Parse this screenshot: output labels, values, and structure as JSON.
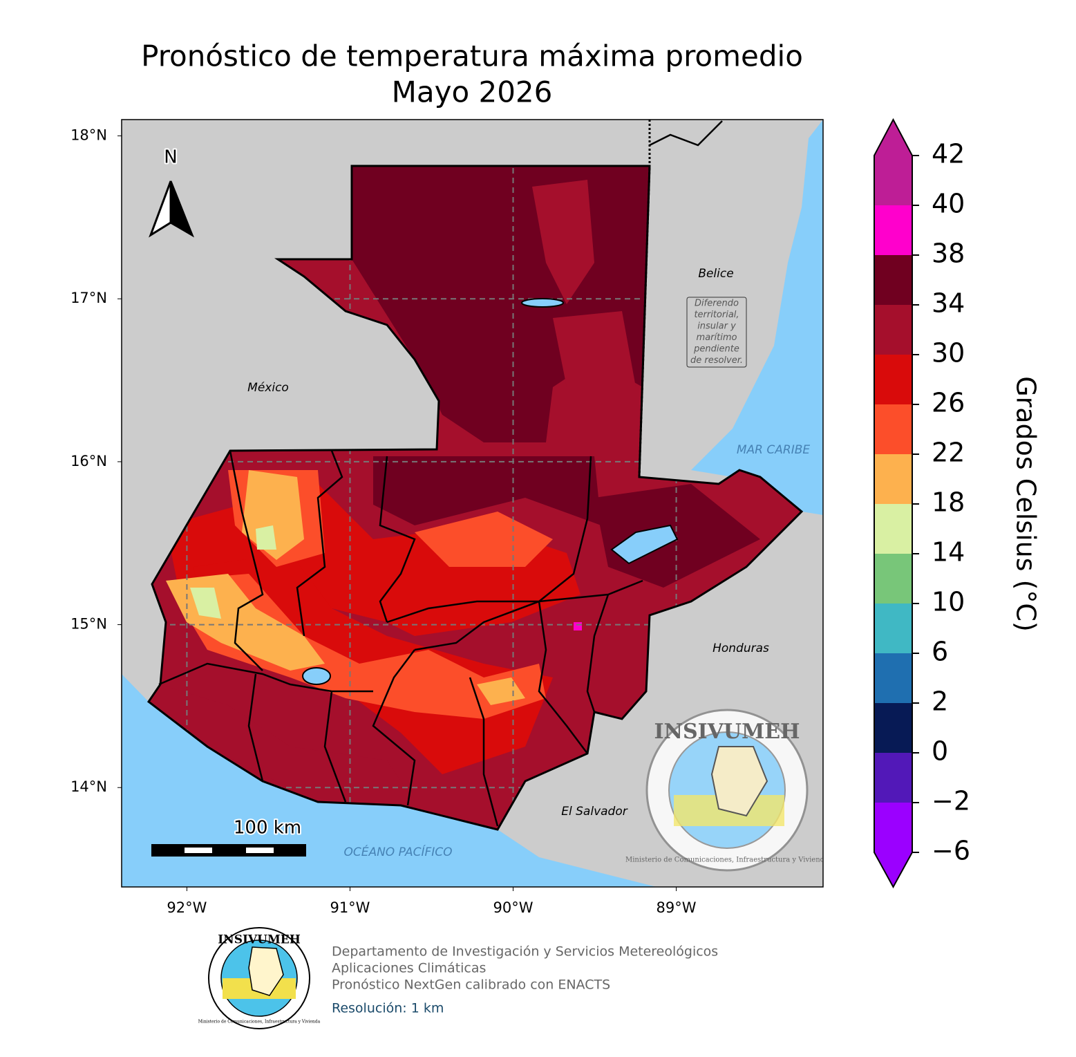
{
  "title": [
    "Pronóstico de temperatura máxima promedio",
    "Mayo 2026"
  ],
  "map": {
    "lonlim": [
      -92.4,
      -88.1
    ],
    "latlim": [
      13.39,
      18.1
    ],
    "lonticks": [
      {
        "value": -92,
        "label": "92°W"
      },
      {
        "value": -91,
        "label": "91°W"
      },
      {
        "value": -90,
        "label": "90°W"
      },
      {
        "value": -89,
        "label": "89°W"
      }
    ],
    "latticks": [
      {
        "value": 14,
        "label": "14°N"
      },
      {
        "value": 15,
        "label": "15°N"
      },
      {
        "value": 16,
        "label": "16°N"
      },
      {
        "value": 17,
        "label": "17°N"
      },
      {
        "value": 18,
        "label": "18°N"
      }
    ],
    "labels": {
      "mexico": "México",
      "belice": "Belice",
      "honduras": "Honduras",
      "el_salvador": "El Salvador",
      "caribe": "MAR CARIBE",
      "pacifico": "OCÉANO PACÍFICO"
    },
    "dispute_note": [
      "Diferendo",
      "territorial,",
      "insular y",
      "marítimo",
      "pendiente",
      "de resolver."
    ],
    "north": "N",
    "scale_bar": "100 km"
  },
  "colorbar": {
    "label": "Grados Celsius (°C)",
    "ticks": [
      {
        "value": -6,
        "label": "−6"
      },
      {
        "value": -2,
        "label": "−2"
      },
      0,
      2,
      6,
      10,
      14,
      18,
      22,
      26,
      30,
      34,
      38,
      40,
      42
    ],
    "colors": [
      "#9b00ff",
      "#5218b8",
      "#071a55",
      "#1f6fb0",
      "#40b8c4",
      "#78c679",
      "#d9f0a3",
      "#fdb14e",
      "#fc4e2a",
      "#d90b0b",
      "#a50f2c",
      "#700020",
      "#ff00cc",
      "#be1e96"
    ]
  },
  "logo": {
    "name": "INSIVUMEH",
    "ministry": "Ministerio de Comunicaciones, Infraestructura y Vivienda"
  },
  "footer": [
    "Departamento de Investigación y Servicios Metereológicos",
    "Aplicaciones Climáticas",
    "Pronóstico NextGen calibrado con ENACTS"
  ],
  "resolution": "Resolución: 1 km"
}
